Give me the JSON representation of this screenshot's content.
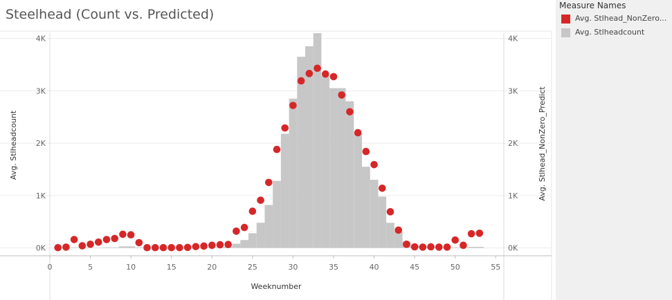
{
  "title": "Steelhead (Count vs. Predicted)",
  "legend": {
    "title": "Measure Names",
    "items": [
      {
        "label": "Avg. Stlhead_NonZero...",
        "color": "#d62728"
      },
      {
        "label": "Avg. Stlheadcount",
        "color": "#c7c7c7"
      }
    ]
  },
  "chart_data": {
    "type": "bar",
    "xlabel": "Weeknumber",
    "ylabel": "Avg. Stlheadcount",
    "ylabel_right": "Avg. Stlhead_NonZero_Predict",
    "xlim": [
      0,
      56
    ],
    "ylim": [
      -150,
      4100
    ],
    "x_ticks": [
      0,
      5,
      10,
      15,
      20,
      25,
      30,
      35,
      40,
      45,
      50,
      55
    ],
    "y_ticks": [
      0,
      1000,
      2000,
      3000,
      4000
    ],
    "y_tick_labels": [
      "0K",
      "1K",
      "2K",
      "3K",
      "4K"
    ],
    "grid": true,
    "legend_position": "right",
    "series": [
      {
        "name": "Avg. Stlheadcount",
        "mark": "bar",
        "color": "#c7c7c7",
        "x": [
          1,
          2,
          3,
          4,
          5,
          6,
          7,
          8,
          9,
          10,
          11,
          12,
          13,
          14,
          15,
          16,
          17,
          18,
          19,
          20,
          21,
          22,
          23,
          24,
          25,
          26,
          27,
          28,
          29,
          30,
          31,
          32,
          33,
          34,
          35,
          36,
          37,
          38,
          39,
          40,
          41,
          42,
          43,
          44,
          45,
          46,
          47,
          48,
          49,
          50,
          51,
          52,
          53
        ],
        "values": [
          5,
          5,
          10,
          5,
          5,
          5,
          10,
          10,
          30,
          30,
          10,
          5,
          5,
          5,
          5,
          5,
          5,
          5,
          5,
          5,
          10,
          20,
          80,
          150,
          280,
          480,
          820,
          1280,
          2180,
          2850,
          3650,
          3850,
          4100,
          3280,
          3050,
          3050,
          2800,
          2180,
          1550,
          1300,
          980,
          480,
          320,
          120,
          50,
          30,
          20,
          10,
          10,
          10,
          10,
          20,
          20
        ]
      },
      {
        "name": "Avg. Stlhead_NonZero...",
        "mark": "circle",
        "color": "#d62728",
        "x": [
          1,
          2,
          3,
          4,
          5,
          6,
          7,
          8,
          9,
          10,
          11,
          12,
          13,
          14,
          15,
          16,
          17,
          18,
          19,
          20,
          21,
          22,
          23,
          24,
          25,
          26,
          27,
          28,
          29,
          30,
          31,
          32,
          33,
          34,
          35,
          36,
          37,
          38,
          39,
          40,
          41,
          42,
          43,
          44,
          45,
          46,
          47,
          48,
          49,
          50,
          51,
          52,
          53
        ],
        "values": [
          5,
          15,
          160,
          40,
          70,
          110,
          160,
          180,
          260,
          250,
          100,
          5,
          5,
          5,
          5,
          5,
          10,
          25,
          35,
          50,
          60,
          65,
          320,
          390,
          700,
          910,
          1250,
          1880,
          2290,
          2720,
          3190,
          3330,
          3430,
          3320,
          3270,
          2920,
          2600,
          2200,
          1840,
          1590,
          1140,
          690,
          340,
          70,
          20,
          15,
          20,
          15,
          15,
          150,
          50,
          270,
          280
        ]
      }
    ]
  }
}
